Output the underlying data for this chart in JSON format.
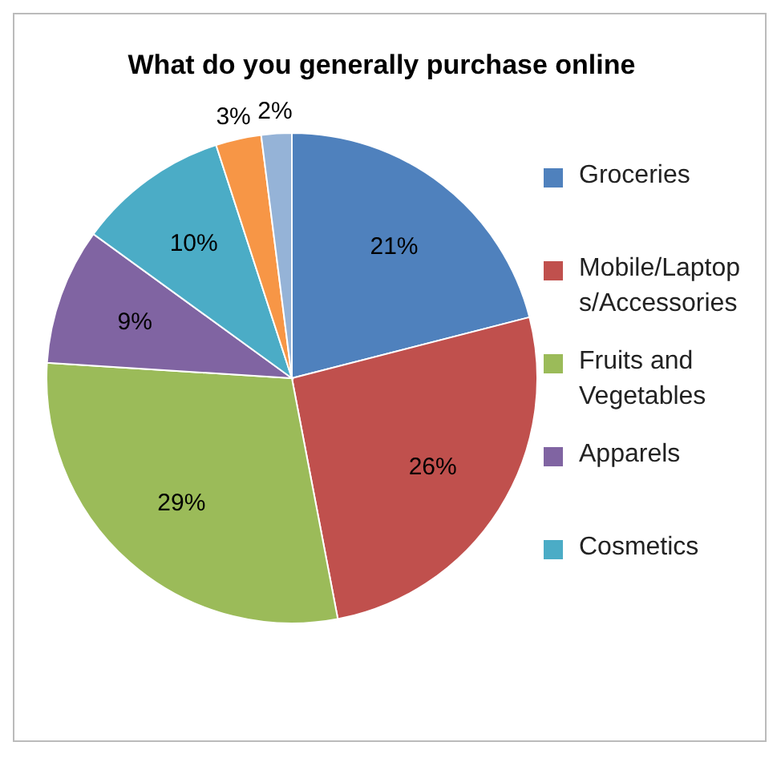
{
  "chart_data": {
    "type": "pie",
    "title": "What do you generally purchase online",
    "categories": [
      "Groceries",
      "Mobile/Laptops/Accessories",
      "Fruits and Vegetables",
      "Apparels",
      "Cosmetics",
      null,
      null
    ],
    "values": [
      21,
      26,
      29,
      9,
      10,
      3,
      2
    ],
    "value_labels": [
      "21%",
      "26%",
      "29%",
      "9%",
      "10%",
      "3%",
      "2%"
    ],
    "colors": [
      "#4f81bd",
      "#c0504d",
      "#9bbb59",
      "#8064a2",
      "#4bacc6",
      "#f79646",
      "#95b3d7"
    ],
    "legend": "right"
  }
}
